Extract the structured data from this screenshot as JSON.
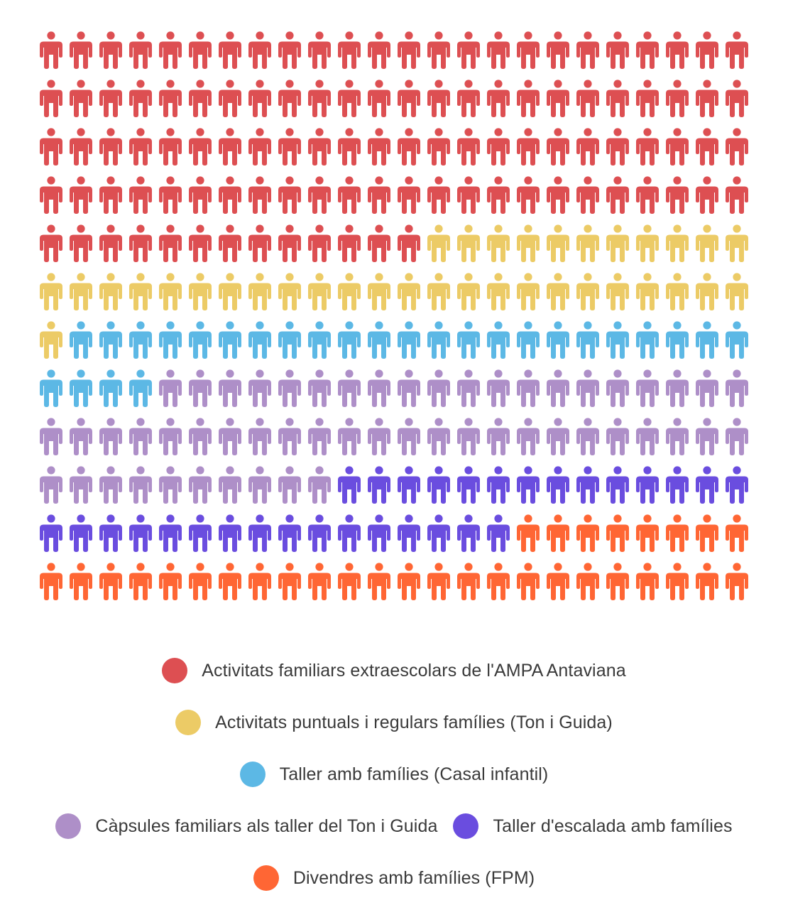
{
  "chart_data": {
    "type": "pictogram",
    "grid": {
      "columns": 24,
      "rows": 12
    },
    "series": [
      {
        "name": "Activitats familiars extraescolars de l'AMPA Antaviana",
        "value": 109,
        "color": "#DD4F52"
      },
      {
        "name": "Activitats puntuals i regulars famílies (Ton i Guida)",
        "value": 36,
        "color": "#ECCB66"
      },
      {
        "name": "Taller amb famílies (Casal infantil)",
        "value": 27,
        "color": "#5CB8E5"
      },
      {
        "name": "Càpsules familiars als taller del Ton i Guida",
        "value": 54,
        "color": "#AE8FC8"
      },
      {
        "name": "Taller d'escalada amb famílies",
        "value": 30,
        "color": "#6A4DDF"
      },
      {
        "name": "Divendres amb famílies (FPM)",
        "value": 32,
        "color": "#FF6634"
      }
    ],
    "legend_rows": [
      [
        0
      ],
      [
        1
      ],
      [
        2
      ],
      [
        3,
        4
      ],
      [
        5
      ]
    ],
    "legend_position": "bottom"
  }
}
